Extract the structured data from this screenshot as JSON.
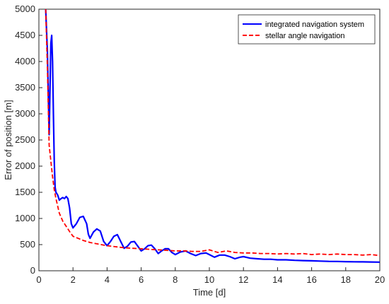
{
  "chart_data": {
    "type": "line",
    "xlabel": "Time [d]",
    "ylabel": "Error of position [m]",
    "xlim": [
      0,
      20
    ],
    "ylim": [
      0,
      5000
    ],
    "xticks": [
      0,
      2,
      4,
      6,
      8,
      10,
      12,
      14,
      16,
      18,
      20
    ],
    "yticks": [
      0,
      500,
      1000,
      1500,
      2000,
      2500,
      3000,
      3500,
      4000,
      4500,
      5000
    ],
    "grid": false,
    "legend_position": "top-right",
    "series": [
      {
        "name": "integrated navigation system",
        "color": "#0000ff",
        "style": "solid",
        "x": [
          0.4,
          0.5,
          0.6,
          0.7,
          0.75,
          0.8,
          0.85,
          0.9,
          0.95,
          1.0,
          1.1,
          1.2,
          1.3,
          1.4,
          1.5,
          1.6,
          1.7,
          1.8,
          1.9,
          2.0,
          2.2,
          2.4,
          2.6,
          2.8,
          2.9,
          3.0,
          3.2,
          3.4,
          3.6,
          3.8,
          4.0,
          4.2,
          4.4,
          4.6,
          4.8,
          5.0,
          5.2,
          5.4,
          5.6,
          5.8,
          6.0,
          6.2,
          6.4,
          6.6,
          6.8,
          7.0,
          7.2,
          7.4,
          7.6,
          7.8,
          8.0,
          8.3,
          8.6,
          8.9,
          9.2,
          9.5,
          9.8,
          10.0,
          10.3,
          10.6,
          10.9,
          11.2,
          11.5,
          11.8,
          12.0,
          12.4,
          12.8,
          13.2,
          13.6,
          14.0,
          14.5,
          15.0,
          15.5,
          16.0,
          16.5,
          17.0,
          17.5,
          18.0,
          18.5,
          19.0,
          19.5,
          20.0
        ],
        "y": [
          5000,
          4200,
          2600,
          4350,
          4500,
          4000,
          3000,
          2100,
          1600,
          1500,
          1450,
          1350,
          1380,
          1400,
          1380,
          1420,
          1380,
          1200,
          900,
          820,
          900,
          1020,
          1040,
          900,
          700,
          620,
          740,
          800,
          760,
          560,
          480,
          560,
          660,
          690,
          560,
          430,
          470,
          550,
          560,
          470,
          380,
          420,
          480,
          490,
          420,
          330,
          380,
          420,
          420,
          350,
          310,
          360,
          380,
          330,
          290,
          330,
          340,
          310,
          260,
          300,
          300,
          270,
          230,
          260,
          270,
          240,
          230,
          220,
          220,
          210,
          210,
          200,
          195,
          190,
          185,
          180,
          178,
          175,
          172,
          170,
          168,
          165
        ]
      },
      {
        "name": "stellar angle navigation",
        "color": "#ff0000",
        "style": "dashed",
        "x": [
          0.4,
          0.5,
          0.6,
          0.7,
          0.8,
          0.9,
          1.0,
          1.2,
          1.4,
          1.6,
          1.8,
          2.0,
          2.3,
          2.6,
          3.0,
          3.5,
          4.0,
          4.5,
          5.0,
          5.5,
          6.0,
          6.5,
          7.0,
          7.5,
          8.0,
          8.5,
          9.0,
          9.5,
          10.0,
          10.5,
          11.0,
          11.5,
          12.0,
          12.5,
          13.0,
          13.5,
          14.0,
          14.5,
          15.0,
          15.5,
          16.0,
          16.5,
          17.0,
          17.5,
          18.0,
          18.5,
          19.0,
          19.5,
          20.0
        ],
        "y": [
          5000,
          3900,
          2400,
          2100,
          1800,
          1550,
          1380,
          1100,
          950,
          850,
          750,
          660,
          620,
          580,
          540,
          510,
          480,
          460,
          440,
          430,
          420,
          410,
          400,
          390,
          380,
          380,
          370,
          370,
          400,
          350,
          380,
          350,
          340,
          340,
          330,
          330,
          320,
          330,
          320,
          330,
          310,
          320,
          310,
          320,
          310,
          310,
          300,
          310,
          290
        ]
      }
    ]
  }
}
